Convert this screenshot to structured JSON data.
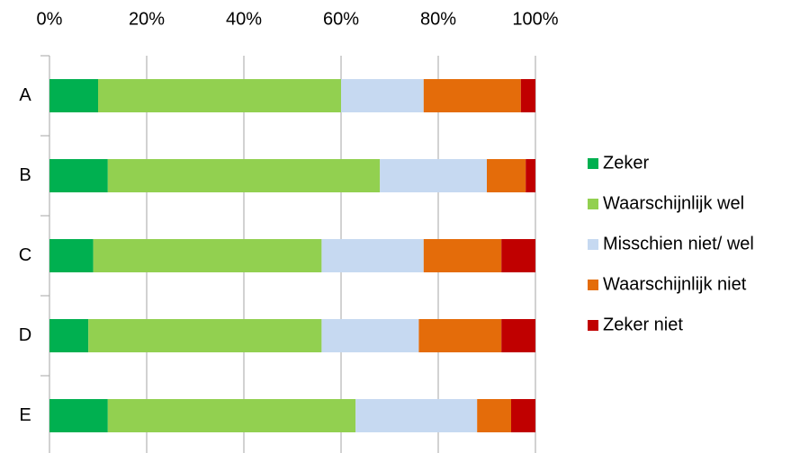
{
  "chart_data": {
    "type": "bar",
    "orientation": "horizontal",
    "stacked": true,
    "categories": [
      "A",
      "B",
      "C",
      "D",
      "E"
    ],
    "series": [
      {
        "name": "Zeker",
        "color": "#00b050",
        "values": [
          10,
          12,
          9,
          8,
          12
        ]
      },
      {
        "name": "Waarschijnlijk wel",
        "color": "#92d050",
        "values": [
          50,
          56,
          47,
          48,
          51
        ]
      },
      {
        "name": "Misschien niet/ wel",
        "color": "#c6d9f1",
        "values": [
          17,
          22,
          21,
          20,
          25
        ]
      },
      {
        "name": "Waarschijnlijk niet",
        "color": "#e46c0a",
        "values": [
          20,
          8,
          16,
          17,
          7
        ]
      },
      {
        "name": "Zeker niet",
        "color": "#c00000",
        "values": [
          3,
          2,
          7,
          7,
          5
        ]
      }
    ],
    "xlim": [
      0,
      100
    ],
    "xticks": [
      {
        "value": 0,
        "label": "0%"
      },
      {
        "value": 20,
        "label": "20%"
      },
      {
        "value": 40,
        "label": "40%"
      },
      {
        "value": 60,
        "label": "60%"
      },
      {
        "value": 80,
        "label": "80%"
      },
      {
        "value": 100,
        "label": "100%"
      }
    ],
    "grid": true,
    "legend": "right"
  }
}
